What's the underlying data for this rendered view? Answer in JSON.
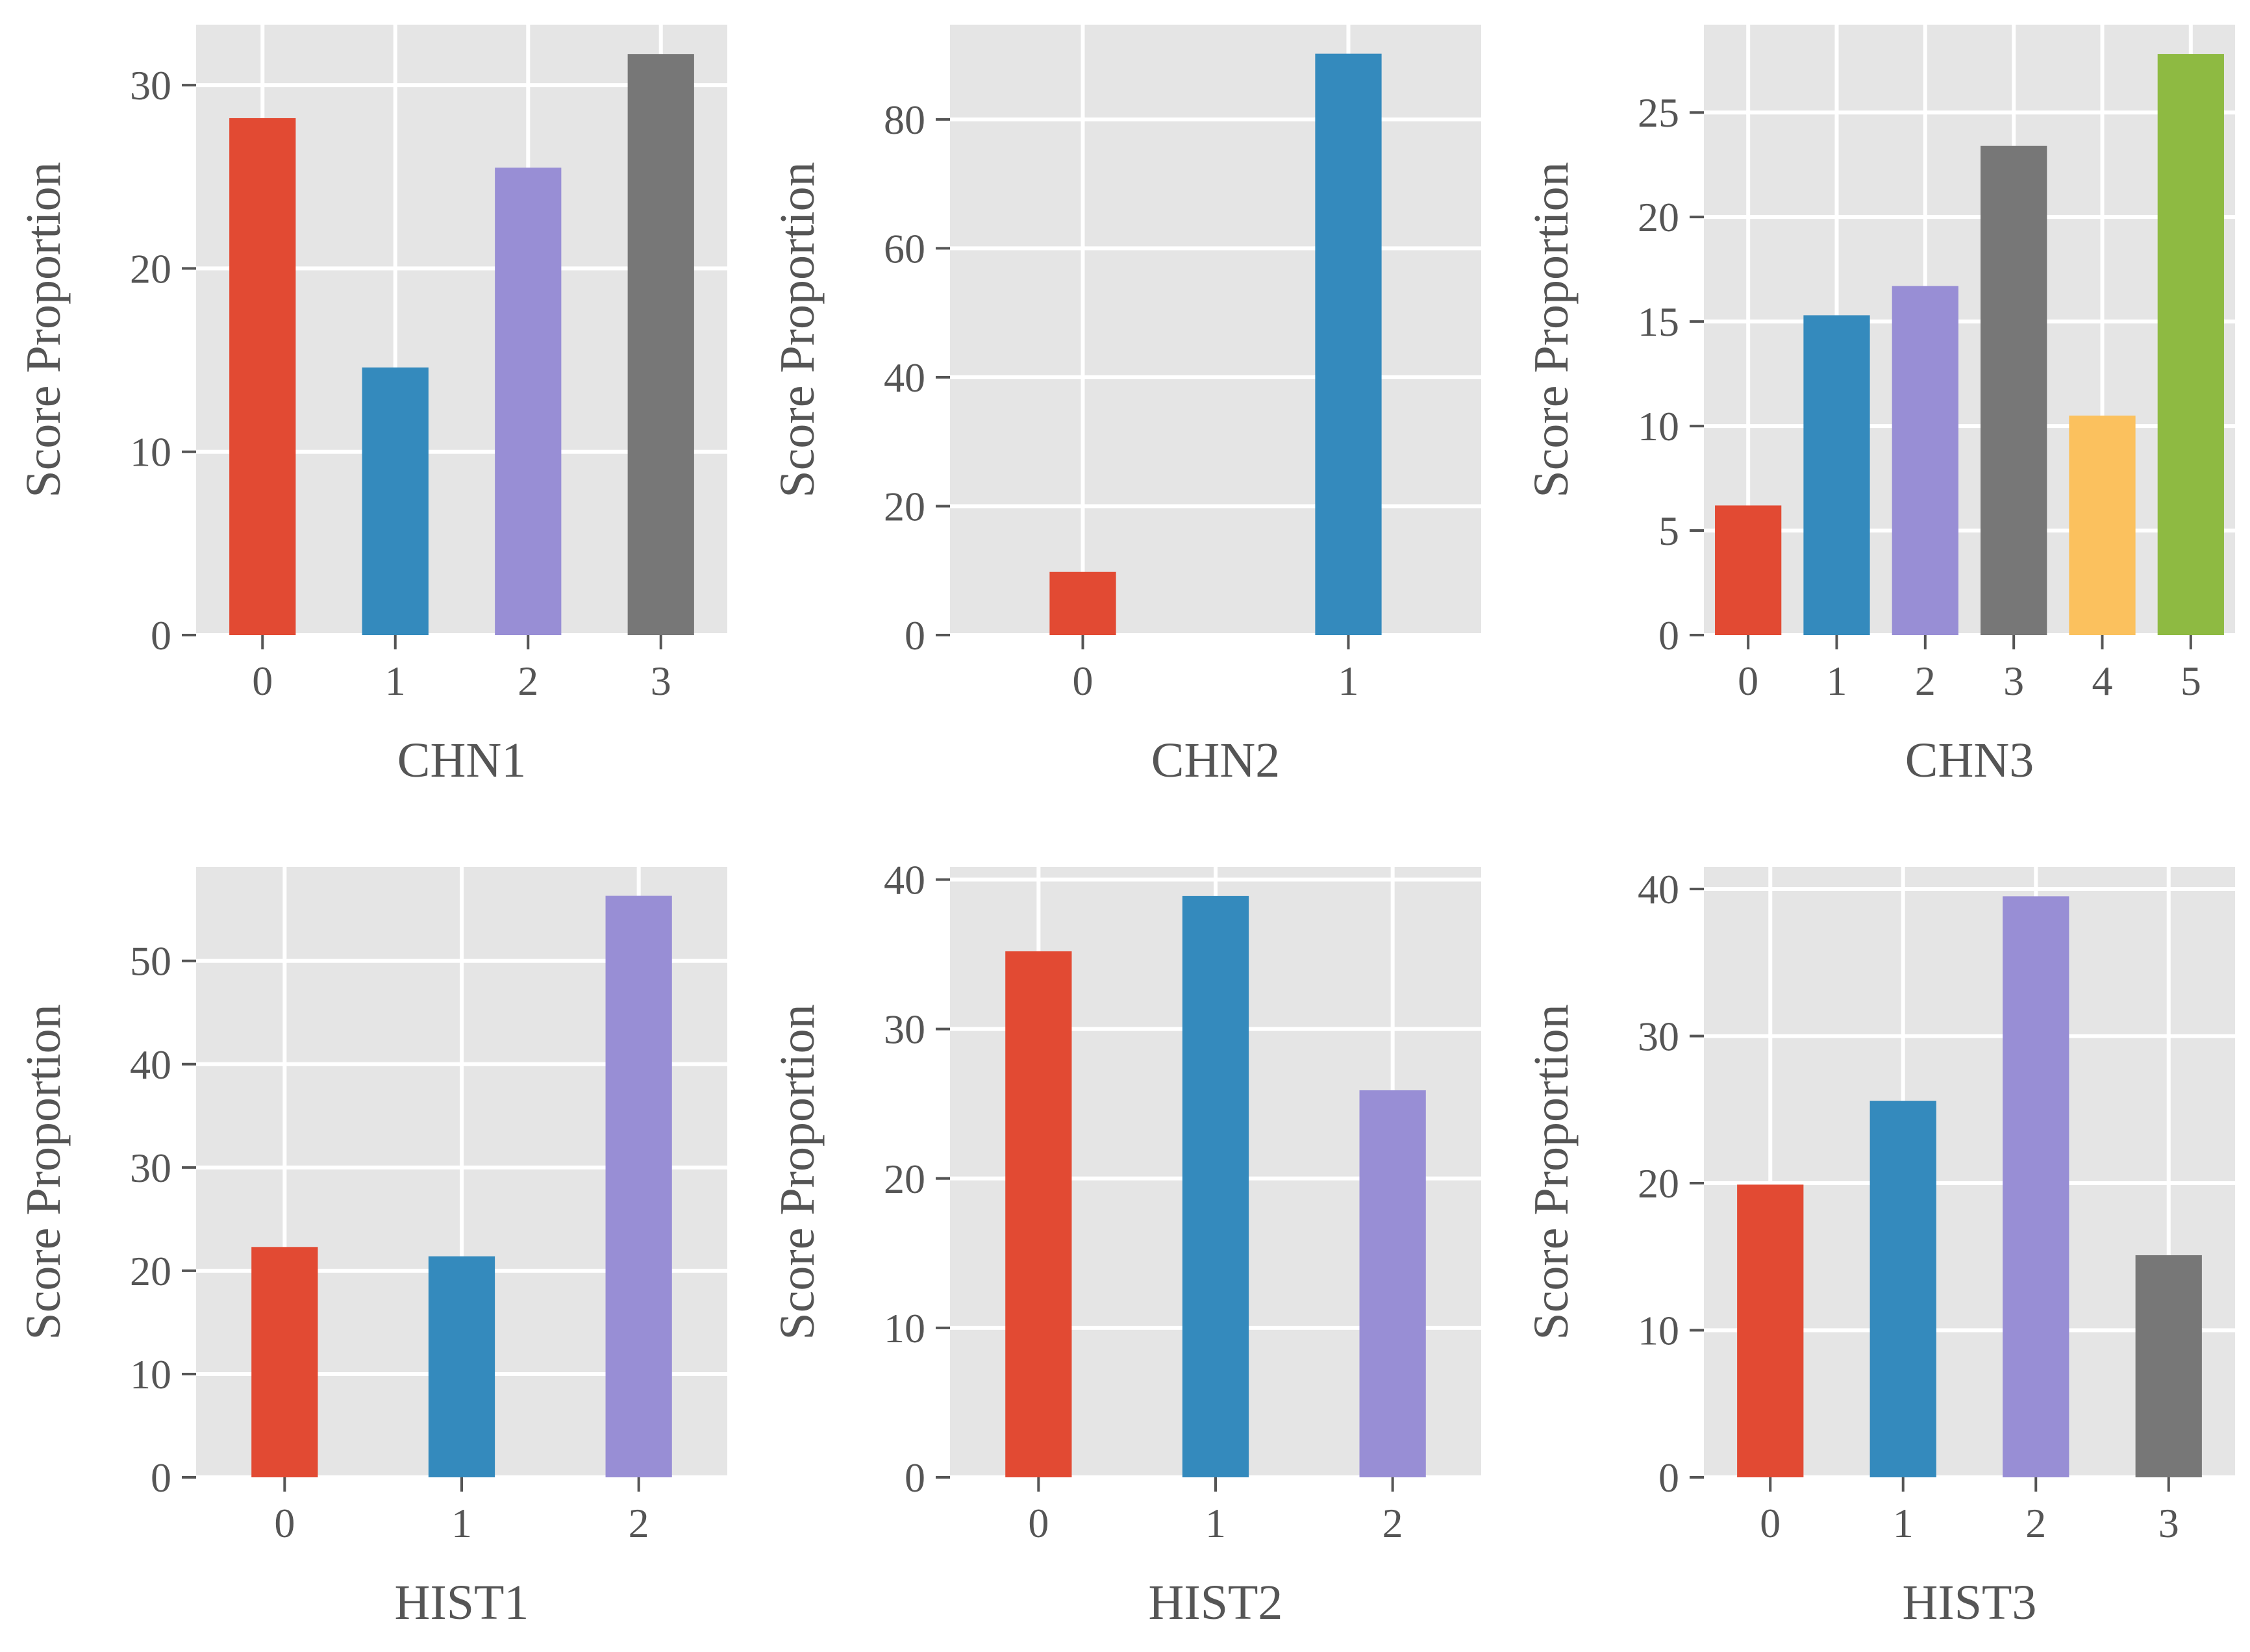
{
  "palette": [
    "#E24A33",
    "#348ABD",
    "#988ED5",
    "#777777",
    "#FBC15E",
    "#8EBA42"
  ],
  "panel_background": "#E5E5E5",
  "grid_color": "#FFFFFF",
  "chart_data": [
    {
      "type": "bar",
      "xlabel": "CHN1",
      "ylabel": "Score Proportion",
      "categories": [
        "0",
        "1",
        "2",
        "3"
      ],
      "values": [
        28.2,
        14.6,
        25.5,
        31.7
      ],
      "ylim": [
        0,
        33.3
      ],
      "yticks": [
        0,
        10,
        20,
        30
      ],
      "bar_width": 0.5
    },
    {
      "type": "bar",
      "xlabel": "CHN2",
      "ylabel": "Score Proportion",
      "categories": [
        "0",
        "1"
      ],
      "values": [
        9.8,
        90.2
      ],
      "ylim": [
        0,
        94.7
      ],
      "yticks": [
        0,
        20,
        40,
        60,
        80
      ],
      "bar_width": 0.25
    },
    {
      "type": "bar",
      "xlabel": "CHN3",
      "ylabel": "Score Proportion",
      "categories": [
        "0",
        "1",
        "2",
        "3",
        "4",
        "5"
      ],
      "values": [
        6.2,
        15.3,
        16.7,
        23.4,
        10.5,
        27.8
      ],
      "ylim": [
        0,
        29.2
      ],
      "yticks": [
        0,
        5,
        10,
        15,
        20,
        25
      ],
      "bar_width": 0.75
    },
    {
      "type": "bar",
      "xlabel": "HIST1",
      "ylabel": "Score Proportion",
      "categories": [
        "0",
        "1",
        "2"
      ],
      "values": [
        22.3,
        21.4,
        56.3
      ],
      "ylim": [
        0,
        59.1
      ],
      "yticks": [
        0,
        10,
        20,
        30,
        40,
        50
      ],
      "bar_width": 0.375
    },
    {
      "type": "bar",
      "xlabel": "HIST2",
      "ylabel": "Score Proportion",
      "categories": [
        "0",
        "1",
        "2"
      ],
      "values": [
        35.2,
        38.9,
        25.9
      ],
      "ylim": [
        0,
        40.85
      ],
      "yticks": [
        0,
        10,
        20,
        30,
        40
      ],
      "bar_width": 0.375
    },
    {
      "type": "bar",
      "xlabel": "HIST3",
      "ylabel": "Score Proportion",
      "categories": [
        "0",
        "1",
        "2",
        "3"
      ],
      "values": [
        19.9,
        25.6,
        39.5,
        15.1
      ],
      "ylim": [
        0,
        41.5
      ],
      "yticks": [
        0,
        10,
        20,
        30,
        40
      ],
      "bar_width": 0.5
    }
  ]
}
